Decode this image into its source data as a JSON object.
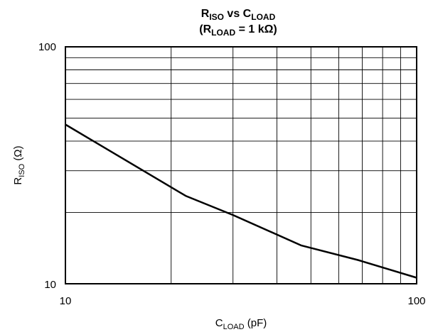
{
  "chart_data": {
    "type": "line",
    "title": {
      "line1": {
        "main": "R",
        "sub": "ISO",
        "mid": " vs C",
        "sub2": "LOAD"
      },
      "line2": {
        "pre": "(R",
        "sub": "LOAD",
        "post": " = 1 kΩ)"
      }
    },
    "xlabel": {
      "main": "C",
      "sub": "LOAD",
      "post": " (pF)"
    },
    "ylabel": {
      "main": "R",
      "sub": "ISO",
      "post": " (Ω)"
    },
    "x_scale": "log",
    "y_scale": "log",
    "xlim": [
      10,
      100
    ],
    "ylim": [
      10,
      100
    ],
    "x_tick_labels": [
      "10",
      "100"
    ],
    "y_tick_labels": [
      "10",
      "100"
    ],
    "grid": true,
    "line_color": "#000000",
    "series": [
      {
        "x": [
          10,
          22,
          30,
          47,
          68,
          100
        ],
        "y": [
          47,
          23.5,
          19.5,
          14.5,
          12.6,
          10.6
        ]
      }
    ]
  }
}
